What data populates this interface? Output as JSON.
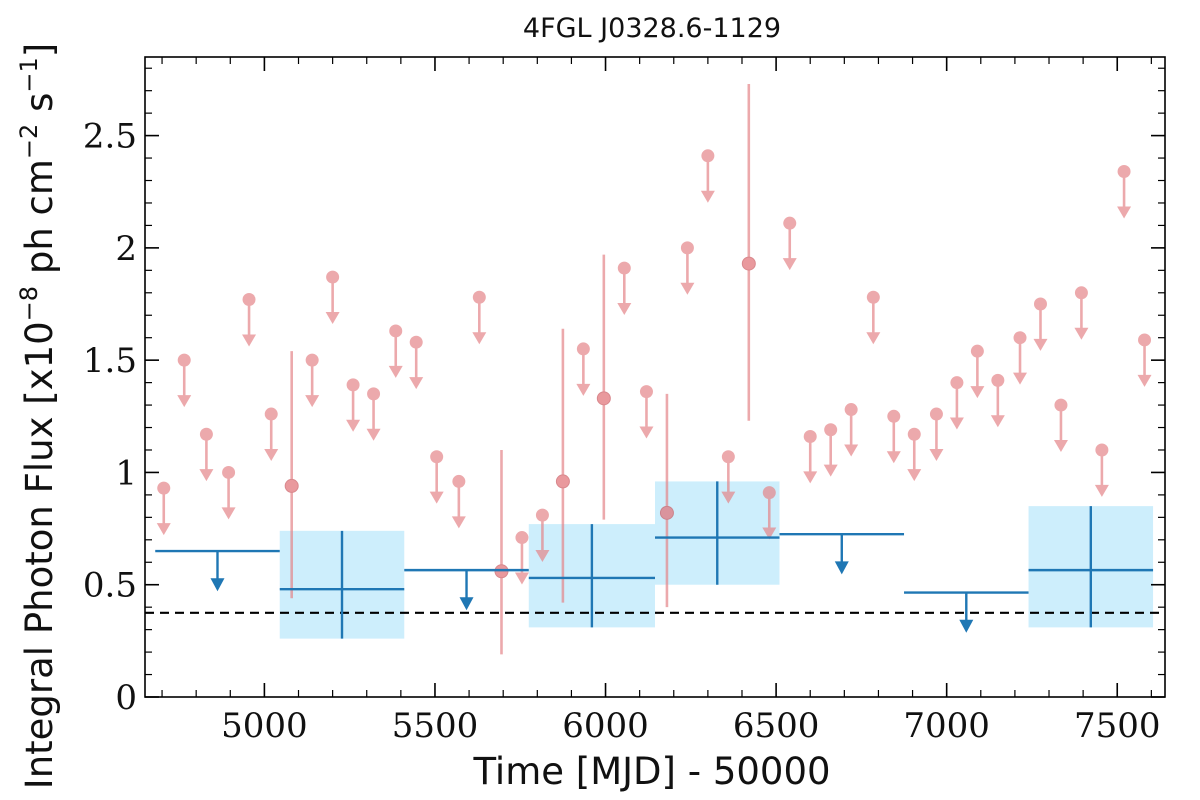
{
  "chart_data": {
    "type": "scatter",
    "title": "4FGL J0328.6-1129",
    "xlabel": "Time [MJD] - 50000",
    "ylabel": "Integral Photon Flux [x10⁻⁸ ph cm⁻² s⁻¹]",
    "ylabel_parts": {
      "prefix": "Integral Photon Flux [x10",
      "exp1": "−8",
      "mid": " ph cm",
      "exp2": "−2",
      "mid2": " s",
      "exp3": "−1",
      "suffix": "]"
    },
    "xlim": [
      4650,
      7640
    ],
    "ylim": [
      0,
      2.85
    ],
    "xticks": [
      5000,
      5500,
      6000,
      6500,
      7000,
      7500
    ],
    "yticks": [
      0,
      0.5,
      1,
      1.5,
      2,
      2.5
    ],
    "ytick_labels": [
      "0",
      "0.5",
      "1",
      "1.5",
      "2",
      "2.5"
    ],
    "grid": false,
    "legend": "none",
    "reference_line": {
      "y": 0.375,
      "style": "dashed",
      "color": "#000000"
    },
    "colors": {
      "short_bins": "#e5868a",
      "long_bins": "#1f77b4",
      "long_bin_box": "#cdeefc",
      "reference": "#000000"
    },
    "series": [
      {
        "kind": "short_bin_upper_limits",
        "points": [
          {
            "x": 4705,
            "y": 0.93
          },
          {
            "x": 4765,
            "y": 1.5
          },
          {
            "x": 4830,
            "y": 1.17
          },
          {
            "x": 4895,
            "y": 1.0
          },
          {
            "x": 4955,
            "y": 1.77
          },
          {
            "x": 5020,
            "y": 1.26
          },
          {
            "x": 5140,
            "y": 1.5
          },
          {
            "x": 5200,
            "y": 1.87
          },
          {
            "x": 5260,
            "y": 1.39
          },
          {
            "x": 5320,
            "y": 1.35
          },
          {
            "x": 5385,
            "y": 1.63
          },
          {
            "x": 5445,
            "y": 1.58
          },
          {
            "x": 5505,
            "y": 1.07
          },
          {
            "x": 5570,
            "y": 0.96
          },
          {
            "x": 5630,
            "y": 1.78
          },
          {
            "x": 5755,
            "y": 0.71
          },
          {
            "x": 5815,
            "y": 0.81
          },
          {
            "x": 5935,
            "y": 1.55
          },
          {
            "x": 6055,
            "y": 1.91
          },
          {
            "x": 6120,
            "y": 1.36
          },
          {
            "x": 6240,
            "y": 2.0
          },
          {
            "x": 6300,
            "y": 2.41
          },
          {
            "x": 6360,
            "y": 1.07
          },
          {
            "x": 6480,
            "y": 0.91
          },
          {
            "x": 6540,
            "y": 2.11
          },
          {
            "x": 6600,
            "y": 1.16
          },
          {
            "x": 6660,
            "y": 1.19
          },
          {
            "x": 6720,
            "y": 1.28
          },
          {
            "x": 6785,
            "y": 1.78
          },
          {
            "x": 6845,
            "y": 1.25
          },
          {
            "x": 6905,
            "y": 1.17
          },
          {
            "x": 6970,
            "y": 1.26
          },
          {
            "x": 7030,
            "y": 1.4
          },
          {
            "x": 7090,
            "y": 1.54
          },
          {
            "x": 7150,
            "y": 1.41
          },
          {
            "x": 7215,
            "y": 1.6
          },
          {
            "x": 7275,
            "y": 1.75
          },
          {
            "x": 7335,
            "y": 1.3
          },
          {
            "x": 7395,
            "y": 1.8
          },
          {
            "x": 7455,
            "y": 1.1
          },
          {
            "x": 7520,
            "y": 2.34
          },
          {
            "x": 7580,
            "y": 1.59
          }
        ]
      },
      {
        "kind": "short_bin_detections",
        "points": [
          {
            "x": 5080,
            "y": 0.94,
            "ylo": 0.44,
            "yhi": 1.54
          },
          {
            "x": 5695,
            "y": 0.56,
            "ylo": 0.19,
            "yhi": 1.1
          },
          {
            "x": 5875,
            "y": 0.96,
            "ylo": 0.42,
            "yhi": 1.64
          },
          {
            "x": 5995,
            "y": 1.33,
            "ylo": 0.79,
            "yhi": 1.97
          },
          {
            "x": 6180,
            "y": 0.82,
            "ylo": 0.4,
            "yhi": 1.35
          },
          {
            "x": 6420,
            "y": 1.93,
            "ylo": 1.23,
            "yhi": 2.73
          }
        ]
      },
      {
        "kind": "long_bin_upper_limits",
        "points": [
          {
            "x0": 4680,
            "x1": 5045,
            "y": 0.65
          },
          {
            "x0": 5410,
            "x1": 5775,
            "y": 0.565
          },
          {
            "x0": 6510,
            "x1": 6875,
            "y": 0.725
          },
          {
            "x0": 6875,
            "x1": 7240,
            "y": 0.465
          }
        ]
      },
      {
        "kind": "long_bin_detections",
        "points": [
          {
            "x0": 5045,
            "x1": 5410,
            "y": 0.48,
            "ylo": 0.26,
            "yhi": 0.74
          },
          {
            "x0": 5775,
            "x1": 6145,
            "y": 0.53,
            "ylo": 0.31,
            "yhi": 0.77
          },
          {
            "x0": 6145,
            "x1": 6510,
            "y": 0.71,
            "ylo": 0.5,
            "yhi": 0.96
          },
          {
            "x0": 7240,
            "x1": 7605,
            "y": 0.565,
            "ylo": 0.31,
            "yhi": 0.85
          }
        ]
      }
    ]
  }
}
